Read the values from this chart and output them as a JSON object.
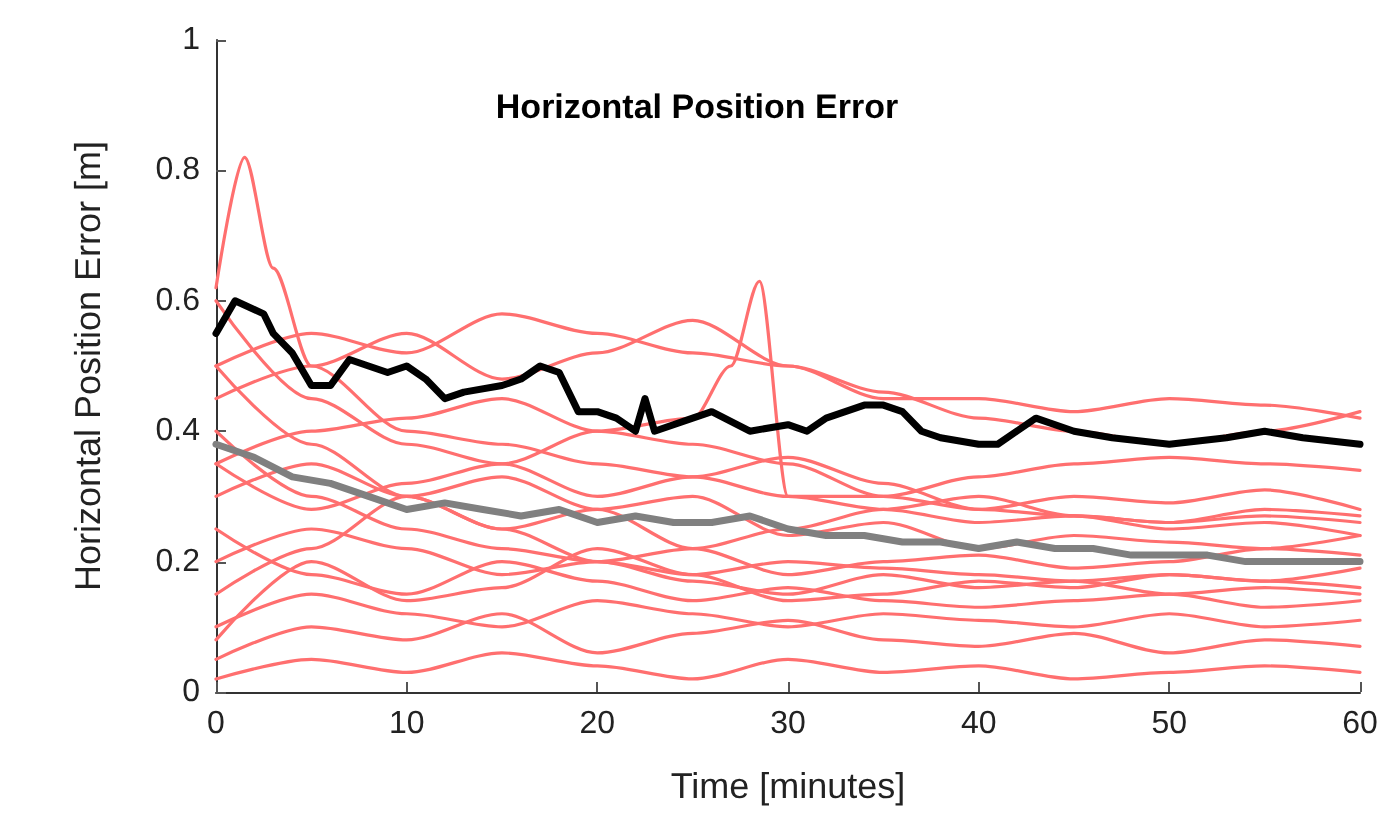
{
  "chart_data": {
    "type": "line",
    "title": "Horizontal Position Error",
    "xlabel": "Time [minutes]",
    "ylabel": "Horizontal Position Error [m]",
    "xlim": [
      0,
      60
    ],
    "xticks": [
      0,
      10,
      20,
      30,
      40,
      50,
      60
    ],
    "ylim": [
      0,
      1
    ],
    "yticks": [
      0,
      0.2,
      0.4,
      0.6,
      0.8,
      1
    ],
    "grid": false,
    "marker": "none",
    "line_style": "solid",
    "x": [
      0,
      5,
      10,
      15,
      20,
      25,
      30,
      35,
      40,
      45,
      50,
      55,
      60
    ],
    "series": [
      {
        "color": "#ff6f6f",
        "x": [
          0,
          1.5,
          3,
          5,
          10,
          15,
          20,
          25,
          30,
          35,
          40,
          45,
          50,
          55,
          60
        ],
        "values": [
          0.62,
          0.82,
          0.65,
          0.5,
          0.4,
          0.38,
          0.35,
          0.33,
          0.3,
          0.3,
          0.28,
          0.27,
          0.26,
          0.27,
          0.26
        ]
      },
      {
        "color": "#ff6f6f",
        "x": [
          0,
          5,
          10,
          15,
          20,
          25,
          27,
          28.5,
          30,
          35,
          40,
          45,
          50,
          55,
          60
        ],
        "values": [
          0.35,
          0.4,
          0.42,
          0.45,
          0.4,
          0.42,
          0.5,
          0.63,
          0.3,
          0.28,
          0.3,
          0.27,
          0.25,
          0.26,
          0.24
        ]
      },
      {
        "color": "#ff6f6f",
        "values": [
          0.5,
          0.55,
          0.52,
          0.58,
          0.55,
          0.52,
          0.5,
          0.45,
          0.45,
          0.43,
          0.45,
          0.44,
          0.42
        ]
      },
      {
        "color": "#ff6f6f",
        "values": [
          0.45,
          0.5,
          0.55,
          0.48,
          0.52,
          0.57,
          0.5,
          0.46,
          0.42,
          0.4,
          0.38,
          0.4,
          0.43
        ]
      },
      {
        "color": "#ff6f6f",
        "values": [
          0.3,
          0.35,
          0.3,
          0.25,
          0.28,
          0.22,
          0.25,
          0.28,
          0.26,
          0.27,
          0.26,
          0.28,
          0.27
        ]
      },
      {
        "color": "#ff6f6f",
        "values": [
          0.2,
          0.25,
          0.22,
          0.18,
          0.2,
          0.17,
          0.15,
          0.18,
          0.16,
          0.17,
          0.15,
          0.16,
          0.15
        ]
      },
      {
        "color": "#ff6f6f",
        "values": [
          0.1,
          0.15,
          0.12,
          0.1,
          0.14,
          0.12,
          0.1,
          0.12,
          0.11,
          0.1,
          0.12,
          0.1,
          0.11
        ]
      },
      {
        "color": "#ff6f6f",
        "values": [
          0.05,
          0.1,
          0.08,
          0.12,
          0.06,
          0.09,
          0.11,
          0.08,
          0.07,
          0.09,
          0.06,
          0.08,
          0.07
        ]
      },
      {
        "color": "#ff6f6f",
        "values": [
          0.4,
          0.3,
          0.25,
          0.22,
          0.2,
          0.18,
          0.2,
          0.19,
          0.18,
          0.17,
          0.18,
          0.17,
          0.16
        ]
      },
      {
        "color": "#ff6f6f",
        "values": [
          0.15,
          0.22,
          0.3,
          0.25,
          0.2,
          0.22,
          0.18,
          0.2,
          0.21,
          0.19,
          0.2,
          0.22,
          0.21
        ]
      },
      {
        "color": "#ff6f6f",
        "values": [
          0.25,
          0.18,
          0.15,
          0.2,
          0.17,
          0.14,
          0.16,
          0.14,
          0.13,
          0.14,
          0.15,
          0.13,
          0.14
        ]
      },
      {
        "color": "#ff6f6f",
        "values": [
          0.35,
          0.28,
          0.32,
          0.35,
          0.3,
          0.33,
          0.36,
          0.32,
          0.28,
          0.3,
          0.29,
          0.31,
          0.28
        ]
      },
      {
        "color": "#ff6f6f",
        "values": [
          0.02,
          0.05,
          0.03,
          0.06,
          0.04,
          0.02,
          0.05,
          0.03,
          0.04,
          0.02,
          0.03,
          0.04,
          0.03
        ]
      },
      {
        "color": "#ff6f6f",
        "values": [
          0.5,
          0.38,
          0.3,
          0.33,
          0.28,
          0.3,
          0.24,
          0.26,
          0.22,
          0.24,
          0.23,
          0.22,
          0.24
        ]
      },
      {
        "color": "#ff6f6f",
        "values": [
          0.08,
          0.2,
          0.14,
          0.16,
          0.22,
          0.18,
          0.14,
          0.15,
          0.17,
          0.16,
          0.18,
          0.17,
          0.19
        ]
      },
      {
        "color": "#ff6f6f",
        "values": [
          0.6,
          0.45,
          0.38,
          0.35,
          0.4,
          0.38,
          0.35,
          0.3,
          0.33,
          0.35,
          0.36,
          0.35,
          0.34
        ]
      },
      {
        "color": "#808080",
        "x": [
          0,
          2,
          4,
          6,
          8,
          10,
          12,
          14,
          16,
          18,
          20,
          22,
          24,
          26,
          28,
          30,
          32,
          34,
          36,
          38,
          40,
          42,
          44,
          46,
          48,
          50,
          52,
          54,
          56,
          58,
          60
        ],
        "values": [
          0.38,
          0.36,
          0.33,
          0.32,
          0.3,
          0.28,
          0.29,
          0.28,
          0.27,
          0.28,
          0.26,
          0.27,
          0.26,
          0.26,
          0.27,
          0.25,
          0.24,
          0.24,
          0.23,
          0.23,
          0.22,
          0.23,
          0.22,
          0.22,
          0.21,
          0.21,
          0.21,
          0.2,
          0.2,
          0.2,
          0.2
        ]
      },
      {
        "color": "#000000",
        "x": [
          0,
          1,
          2.5,
          3,
          4,
          5,
          6,
          7,
          8,
          9,
          10,
          11,
          12,
          13,
          15,
          16,
          17,
          18,
          19,
          20,
          21,
          22,
          22.5,
          23,
          25,
          26,
          28,
          30,
          31,
          32,
          34,
          35,
          36,
          37,
          38,
          40,
          41,
          42,
          43,
          45,
          47,
          50,
          53,
          55,
          57,
          60
        ],
        "values": [
          0.55,
          0.6,
          0.58,
          0.55,
          0.52,
          0.47,
          0.47,
          0.51,
          0.5,
          0.49,
          0.5,
          0.48,
          0.45,
          0.46,
          0.47,
          0.48,
          0.5,
          0.49,
          0.43,
          0.43,
          0.42,
          0.4,
          0.45,
          0.4,
          0.42,
          0.43,
          0.4,
          0.41,
          0.4,
          0.42,
          0.44,
          0.44,
          0.43,
          0.4,
          0.39,
          0.38,
          0.38,
          0.4,
          0.42,
          0.4,
          0.39,
          0.38,
          0.39,
          0.4,
          0.39,
          0.38
        ]
      }
    ]
  }
}
